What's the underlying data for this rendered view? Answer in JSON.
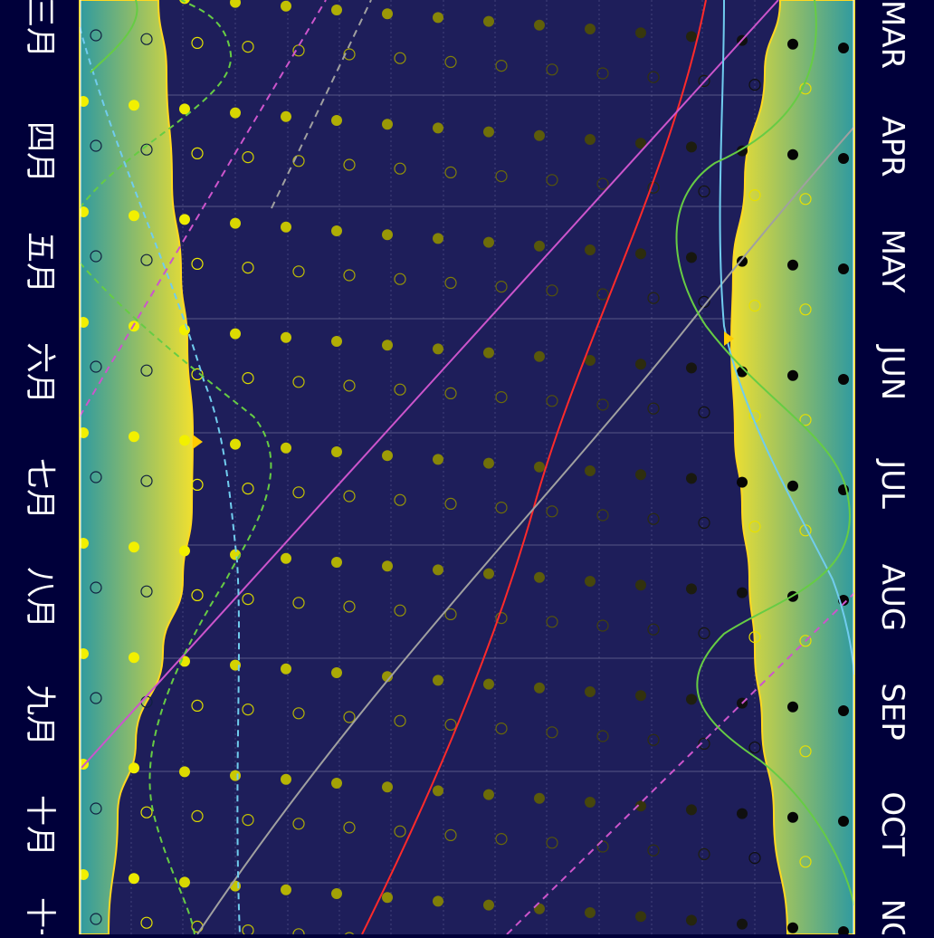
{
  "months_left": [
    {
      "label": "三月",
      "sy": 30
    },
    {
      "label": "四月",
      "sy": 168
    },
    {
      "label": "五月",
      "sy": 290
    },
    {
      "label": "六月",
      "sy": 412
    },
    {
      "label": "七月",
      "sy": 540
    },
    {
      "label": "八月",
      "sy": 660
    },
    {
      "label": "九月",
      "sy": 790
    },
    {
      "label": "十月",
      "sy": 912
    },
    {
      "label": "十一",
      "sy": 1025
    }
  ],
  "months_right": [
    {
      "label": "MAR",
      "sy": 38
    },
    {
      "label": "APR",
      "sy": 162
    },
    {
      "label": "MAY",
      "sy": 288
    },
    {
      "label": "JUN",
      "sy": 412
    },
    {
      "label": "JUL",
      "sy": 535
    },
    {
      "label": "AUG",
      "sy": 660
    },
    {
      "label": "SEP",
      "sy": 786
    },
    {
      "label": "OCT",
      "sy": 910
    },
    {
      "label": "NOV",
      "sy": 1030
    }
  ],
  "colors": {
    "background": "#00003a",
    "plot_background": "#1e1e5a",
    "twilight_band_outer": "#2f9aa0",
    "twilight_band_inner": "#f0e030",
    "twilight_edge": "#ffd820",
    "label_text": "#ffffff",
    "grid": "#6a6a9a",
    "red_curve": "#ff2a2a",
    "magenta_line": "#cc55cc",
    "gray_curve": "#a0a0a0",
    "cyan_curve": "#70ccee",
    "green_curve": "#66cc44",
    "marker": "#ffcc00"
  }
}
